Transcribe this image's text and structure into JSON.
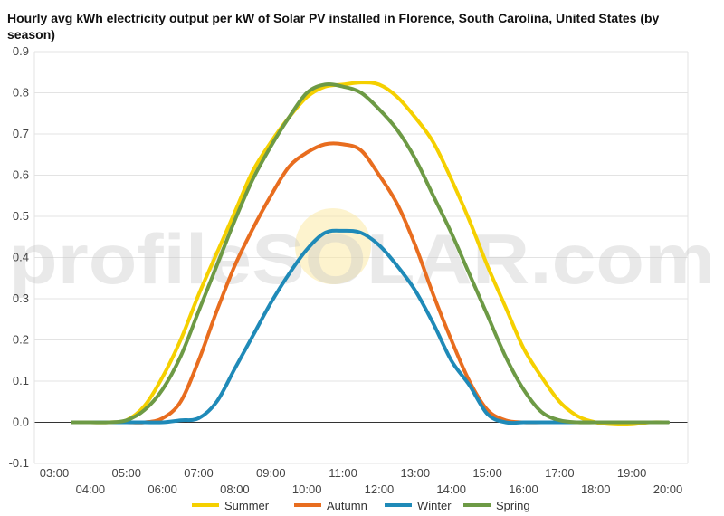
{
  "chart_data": {
    "type": "line",
    "title": "Hourly avg kWh electricity output per kW of Solar PV installed in Florence, South Carolina, United States (by season)",
    "xlabel": "",
    "ylabel": "",
    "ylim": [
      -0.1,
      0.9
    ],
    "yticks": [
      "-0.1",
      "0.0",
      "0.1",
      "0.2",
      "0.3",
      "0.4",
      "0.5",
      "0.6",
      "0.7",
      "0.8",
      "0.9"
    ],
    "xticks": [
      "03:00",
      "04:00",
      "05:00",
      "06:00",
      "07:00",
      "08:00",
      "09:00",
      "10:00",
      "11:00",
      "12:00",
      "13:00",
      "14:00",
      "15:00",
      "16:00",
      "17:00",
      "18:00",
      "19:00",
      "20:00"
    ],
    "x": [
      3.5,
      4.0,
      4.5,
      5.0,
      5.5,
      6.0,
      6.5,
      7.0,
      7.5,
      8.0,
      8.5,
      9.0,
      9.5,
      10.0,
      10.5,
      11.0,
      11.5,
      12.0,
      12.5,
      13.0,
      13.5,
      14.0,
      14.5,
      15.0,
      15.5,
      16.0,
      16.5,
      17.0,
      17.5,
      18.0,
      18.5,
      19.0,
      19.5,
      20.0
    ],
    "series": [
      {
        "name": "Summer",
        "color": "#f5d000",
        "values": [
          0.0,
          0.0,
          0.0,
          0.005,
          0.04,
          0.11,
          0.2,
          0.31,
          0.41,
          0.51,
          0.61,
          0.68,
          0.74,
          0.79,
          0.815,
          0.82,
          0.825,
          0.82,
          0.79,
          0.74,
          0.68,
          0.59,
          0.49,
          0.38,
          0.28,
          0.18,
          0.11,
          0.05,
          0.015,
          0.0,
          -0.005,
          -0.005,
          0.0,
          0.0
        ]
      },
      {
        "name": "Autumn",
        "color": "#e86d1f",
        "values": [
          0.0,
          0.0,
          0.0,
          0.0,
          0.0,
          0.01,
          0.05,
          0.15,
          0.27,
          0.38,
          0.47,
          0.55,
          0.62,
          0.655,
          0.675,
          0.675,
          0.66,
          0.6,
          0.53,
          0.43,
          0.31,
          0.2,
          0.1,
          0.03,
          0.005,
          0.0,
          0.0,
          0.0,
          0.0,
          0.0,
          0.0,
          0.0,
          0.0,
          0.0
        ]
      },
      {
        "name": "Winter",
        "color": "#1f8ab8",
        "values": [
          0.0,
          0.0,
          0.0,
          0.0,
          0.0,
          0.0,
          0.005,
          0.01,
          0.05,
          0.13,
          0.21,
          0.29,
          0.36,
          0.42,
          0.46,
          0.465,
          0.46,
          0.43,
          0.38,
          0.32,
          0.24,
          0.15,
          0.09,
          0.02,
          0.0,
          0.0,
          0.0,
          0.0,
          0.0,
          0.0,
          0.0,
          0.0,
          0.0,
          0.0
        ]
      },
      {
        "name": "Spring",
        "color": "#6d9a45",
        "values": [
          0.0,
          0.0,
          0.0,
          0.005,
          0.03,
          0.08,
          0.16,
          0.27,
          0.38,
          0.49,
          0.59,
          0.67,
          0.74,
          0.8,
          0.82,
          0.815,
          0.8,
          0.76,
          0.71,
          0.64,
          0.55,
          0.46,
          0.36,
          0.26,
          0.16,
          0.08,
          0.025,
          0.005,
          0.0,
          0.0,
          0.0,
          0.0,
          0.0,
          0.0
        ]
      }
    ],
    "grid": true,
    "legend": "bottom",
    "watermark": "profileSOLAR.com"
  }
}
